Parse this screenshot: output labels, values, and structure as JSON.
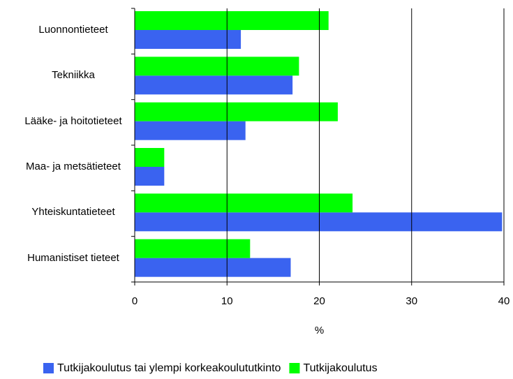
{
  "chart_data": {
    "type": "bar",
    "orientation": "horizontal",
    "categories": [
      "Luonnontieteet",
      "Tekniikka",
      "Lääke- ja hoitotieteet",
      "Maa- ja metsätieteet",
      "Yhteiskuntatieteet",
      "Humanistiset tieteet"
    ],
    "series": [
      {
        "name": "Tutkijakoulutus tai ylempi korkeakoulututkinto",
        "color": "#3a63f0",
        "values": [
          11.5,
          17.1,
          12,
          3.2,
          39.8,
          16.9
        ]
      },
      {
        "name": "Tutkijakoulutus",
        "color": "#00ff00",
        "values": [
          21,
          17.8,
          22,
          3.2,
          23.6,
          12.5
        ]
      }
    ],
    "xlabel": "%",
    "xlim": [
      0,
      40
    ],
    "xticks": [
      0,
      10,
      20,
      30,
      40
    ],
    "grid": true,
    "legend": "bottom"
  }
}
